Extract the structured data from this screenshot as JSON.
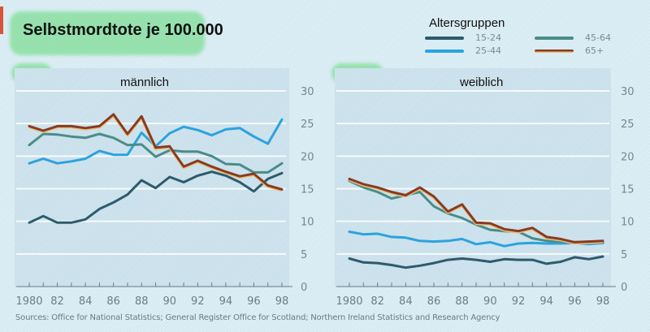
{
  "title": "Selbstmordtote je 100.000",
  "legend": {
    "title": "Altersgruppen",
    "items": [
      {
        "label": "15-24",
        "color": "#2d5a6e"
      },
      {
        "label": "25-44",
        "color": "#2aa3de"
      },
      {
        "label": "45-64",
        "color": "#4a8c8a"
      },
      {
        "label": "65+",
        "color": "#8a3a22"
      }
    ]
  },
  "sources": "Sources: Office for National Statistics; General Register Office for Scotland; Northern Ireland Statistics and Research Agency",
  "chart_data": [
    {
      "type": "line",
      "title": "männlich",
      "xlabel": "",
      "ylabel": "",
      "x": [
        1980,
        1981,
        1982,
        1983,
        1984,
        1985,
        1986,
        1987,
        1988,
        1989,
        1990,
        1991,
        1992,
        1993,
        1994,
        1995,
        1996,
        1997,
        1998
      ],
      "xticks": [
        "1980",
        "82",
        "84",
        "86",
        "88",
        "90",
        "92",
        "94",
        "96",
        "98"
      ],
      "yticks": [
        "0",
        "5",
        "10",
        "15",
        "20",
        "25",
        "30"
      ],
      "ylim": [
        0,
        30
      ],
      "grid": true,
      "series": [
        {
          "name": "15-24",
          "values": [
            9.8,
            10.8,
            9.8,
            9.8,
            10.3,
            11.9,
            12.9,
            14.1,
            16.3,
            15.1,
            16.8,
            16.0,
            17.0,
            17.6,
            17.0,
            16.0,
            14.6,
            16.5,
            17.4
          ]
        },
        {
          "name": "25-44",
          "values": [
            18.9,
            19.6,
            18.9,
            19.2,
            19.6,
            20.8,
            20.2,
            20.2,
            23.6,
            21.5,
            23.5,
            24.5,
            24.0,
            23.2,
            24.1,
            24.3,
            23.0,
            21.9,
            25.6
          ]
        },
        {
          "name": "45-64",
          "values": [
            21.7,
            23.4,
            23.3,
            23.0,
            22.8,
            23.4,
            22.8,
            21.7,
            21.8,
            19.9,
            20.9,
            20.7,
            20.7,
            20.0,
            18.8,
            18.7,
            17.5,
            17.5,
            18.9
          ]
        },
        {
          "name": "65+",
          "values": [
            24.6,
            23.9,
            24.6,
            24.6,
            24.3,
            24.6,
            26.4,
            23.4,
            26.1,
            21.3,
            21.5,
            18.4,
            19.3,
            18.4,
            17.6,
            16.9,
            17.3,
            15.5,
            14.9
          ]
        }
      ]
    },
    {
      "type": "line",
      "title": "weiblich",
      "xlabel": "",
      "ylabel": "",
      "x": [
        1980,
        1981,
        1982,
        1983,
        1984,
        1985,
        1986,
        1987,
        1988,
        1989,
        1990,
        1991,
        1992,
        1993,
        1994,
        1995,
        1996,
        1997,
        1998
      ],
      "xticks": [
        "1980",
        "82",
        "84",
        "86",
        "88",
        "90",
        "92",
        "94",
        "96",
        "98"
      ],
      "yticks": [
        "0",
        "5",
        "10",
        "15",
        "20",
        "25",
        "30"
      ],
      "ylim": [
        0,
        30
      ],
      "grid": true,
      "series": [
        {
          "name": "15-24",
          "values": [
            4.3,
            3.7,
            3.6,
            3.3,
            2.9,
            3.2,
            3.6,
            4.1,
            4.3,
            4.1,
            3.8,
            4.2,
            4.1,
            4.1,
            3.5,
            3.8,
            4.5,
            4.2,
            4.6
          ]
        },
        {
          "name": "25-44",
          "values": [
            8.4,
            8.0,
            8.1,
            7.6,
            7.5,
            7.0,
            6.9,
            7.0,
            7.3,
            6.5,
            6.8,
            6.2,
            6.6,
            6.7,
            6.6,
            6.6,
            6.7,
            6.5,
            6.7
          ]
        },
        {
          "name": "45-64",
          "values": [
            16.2,
            15.2,
            14.5,
            13.5,
            14.0,
            14.5,
            12.3,
            11.2,
            10.5,
            9.5,
            8.7,
            8.5,
            8.4,
            7.4,
            7.0,
            6.9,
            6.8,
            6.9,
            6.7
          ]
        },
        {
          "name": "65+",
          "values": [
            16.5,
            15.7,
            15.2,
            14.5,
            14.0,
            15.2,
            13.8,
            11.5,
            12.6,
            9.8,
            9.7,
            8.8,
            8.5,
            9.0,
            7.6,
            7.3,
            6.8,
            6.9,
            7.0
          ]
        }
      ]
    }
  ]
}
